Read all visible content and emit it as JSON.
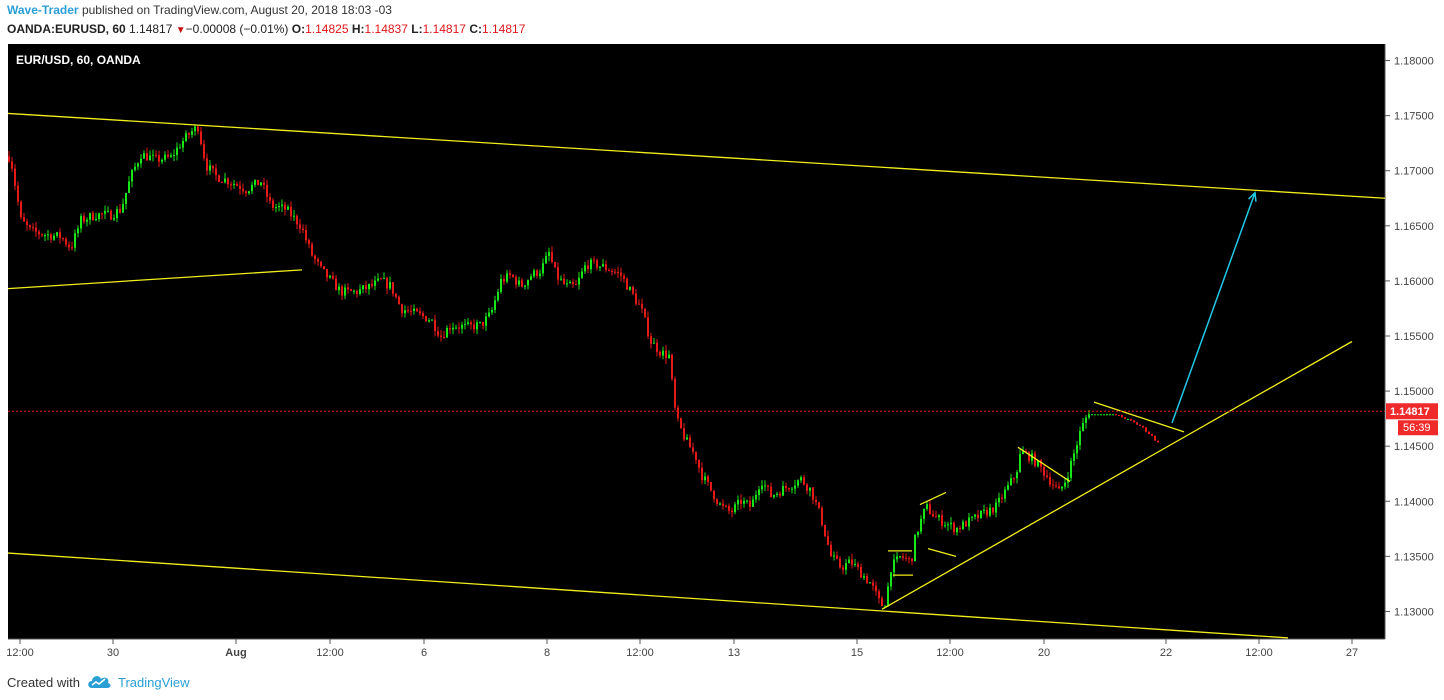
{
  "header": {
    "author": "Wave-Trader",
    "published_text": "published on TradingView.com, August 20, 2018 18:03 -03",
    "symbol": "OANDA:EURUSD, 60",
    "last": "1.14817",
    "change": "−0.00008 (−0.01%)",
    "open_label": "O:",
    "open": "1.14825",
    "high_label": "H:",
    "high": "1.14837",
    "low_label": "L:",
    "low": "1.14817",
    "close_label": "C:",
    "close": "1.14817"
  },
  "chart_data": {
    "type": "candlestick",
    "title": "EUR/USD, 60, OANDA",
    "ylim": [
      1.1275,
      1.1815
    ],
    "y_ticks": [
      "1.13000",
      "1.13500",
      "1.14000",
      "1.14500",
      "1.15000",
      "1.15500",
      "1.16000",
      "1.16500",
      "1.17000",
      "1.17500",
      "1.18000"
    ],
    "x_ticks": [
      "12:00",
      "30",
      "Aug",
      "12:00",
      "6",
      "8",
      "12:00",
      "13",
      "15",
      "12:00",
      "20",
      "22",
      "12:00",
      "27"
    ],
    "last_price_label": "1.14817",
    "countdown_label": "56:39",
    "up_color": "#19e619",
    "down_color": "#e61919",
    "trendline_color": "#f2ee1d",
    "arrow_color": "#22c8e6",
    "price_path": [
      [
        0,
        1.1725
      ],
      [
        10,
        1.171
      ],
      [
        20,
        1.1655
      ],
      [
        30,
        1.1645
      ],
      [
        45,
        1.1642
      ],
      [
        60,
        1.164
      ],
      [
        70,
        1.163
      ],
      [
        80,
        1.1655
      ],
      [
        95,
        1.166
      ],
      [
        110,
        1.166
      ],
      [
        120,
        1.1665
      ],
      [
        130,
        1.1695
      ],
      [
        140,
        1.1715
      ],
      [
        155,
        1.171
      ],
      [
        170,
        1.1712
      ],
      [
        180,
        1.1725
      ],
      [
        190,
        1.1735
      ],
      [
        197,
        1.174
      ],
      [
        205,
        1.1705
      ],
      [
        215,
        1.1695
      ],
      [
        230,
        1.169
      ],
      [
        245,
        1.1683
      ],
      [
        260,
        1.169
      ],
      [
        270,
        1.1668
      ],
      [
        285,
        1.1665
      ],
      [
        300,
        1.165
      ],
      [
        310,
        1.1625
      ],
      [
        320,
        1.161
      ],
      [
        330,
        1.16
      ],
      [
        340,
        1.159
      ],
      [
        355,
        1.159
      ],
      [
        370,
        1.1595
      ],
      [
        380,
        1.16
      ],
      [
        390,
        1.1595
      ],
      [
        400,
        1.1575
      ],
      [
        415,
        1.157
      ],
      [
        430,
        1.1565
      ],
      [
        440,
        1.155
      ],
      [
        450,
        1.156
      ],
      [
        465,
        1.1558
      ],
      [
        480,
        1.156
      ],
      [
        490,
        1.157
      ],
      [
        500,
        1.16
      ],
      [
        510,
        1.1605
      ],
      [
        520,
        1.1595
      ],
      [
        530,
        1.1605
      ],
      [
        540,
        1.161
      ],
      [
        548,
        1.1625
      ],
      [
        555,
        1.1605
      ],
      [
        565,
        1.1595
      ],
      [
        575,
        1.1595
      ],
      [
        585,
        1.1615
      ],
      [
        595,
        1.1615
      ],
      [
        610,
        1.161
      ],
      [
        620,
        1.1605
      ],
      [
        630,
        1.159
      ],
      [
        640,
        1.1575
      ],
      [
        650,
        1.1545
      ],
      [
        660,
        1.1535
      ],
      [
        668,
        1.1532
      ],
      [
        675,
        1.1475
      ],
      [
        685,
        1.1455
      ],
      [
        695,
        1.144
      ],
      [
        700,
        1.1425
      ],
      [
        710,
        1.141
      ],
      [
        720,
        1.1395
      ],
      [
        730,
        1.139
      ],
      [
        740,
        1.14
      ],
      [
        750,
        1.1395
      ],
      [
        760,
        1.142
      ],
      [
        770,
        1.1405
      ],
      [
        780,
        1.141
      ],
      [
        790,
        1.1415
      ],
      [
        800,
        1.142
      ],
      [
        810,
        1.141
      ],
      [
        820,
        1.1385
      ],
      [
        830,
        1.135
      ],
      [
        840,
        1.134
      ],
      [
        850,
        1.1345
      ],
      [
        860,
        1.1335
      ],
      [
        870,
        1.1325
      ],
      [
        880,
        1.1305
      ],
      [
        885,
        1.131
      ],
      [
        890,
        1.134
      ],
      [
        900,
        1.135
      ],
      [
        910,
        1.1345
      ],
      [
        915,
        1.137
      ],
      [
        925,
        1.1395
      ],
      [
        935,
        1.1385
      ],
      [
        945,
        1.138
      ],
      [
        955,
        1.1375
      ],
      [
        965,
        1.138
      ],
      [
        975,
        1.1385
      ],
      [
        985,
        1.139
      ],
      [
        995,
        1.1395
      ],
      [
        1005,
        1.141
      ],
      [
        1015,
        1.1425
      ],
      [
        1020,
        1.1445
      ],
      [
        1030,
        1.144
      ],
      [
        1040,
        1.143
      ],
      [
        1050,
        1.1418
      ],
      [
        1058,
        1.1408
      ],
      [
        1065,
        1.142
      ],
      [
        1072,
        1.144
      ],
      [
        1080,
        1.1465
      ],
      [
        1088,
        1.1482
      ],
      [
        1095,
        1.1482
      ],
      [
        1110,
        1.148
      ],
      [
        1125,
        1.1475
      ],
      [
        1140,
        1.1468
      ],
      [
        1150,
        1.146
      ],
      [
        1158,
        1.1452
      ]
    ],
    "trendlines": [
      [
        [
          8,
          1.1752
        ],
        [
          1385,
          1.1675
        ]
      ],
      [
        [
          8,
          1.1593
        ],
        [
          302,
          1.161
        ]
      ],
      [
        [
          8,
          1.1353
        ],
        [
          1288,
          1.1276
        ]
      ],
      [
        [
          882,
          1.1302
        ],
        [
          1352,
          1.1545
        ]
      ],
      [
        [
          888,
          1.1355
        ],
        [
          912,
          1.1355
        ]
      ],
      [
        [
          893,
          1.1333
        ],
        [
          913,
          1.1333
        ]
      ],
      [
        [
          920,
          1.1397
        ],
        [
          946,
          1.1408
        ]
      ],
      [
        [
          928,
          1.1357
        ],
        [
          956,
          1.135
        ]
      ],
      [
        [
          1018,
          1.1449
        ],
        [
          1070,
          1.1418
        ]
      ],
      [
        [
          1094,
          1.149
        ],
        [
          1184,
          1.1463
        ]
      ]
    ],
    "projection_arrow": [
      [
        1172,
        1.1471
      ],
      [
        1255,
        1.168
      ]
    ]
  },
  "footer": {
    "created_with": "Created with",
    "brand": "TradingView"
  }
}
